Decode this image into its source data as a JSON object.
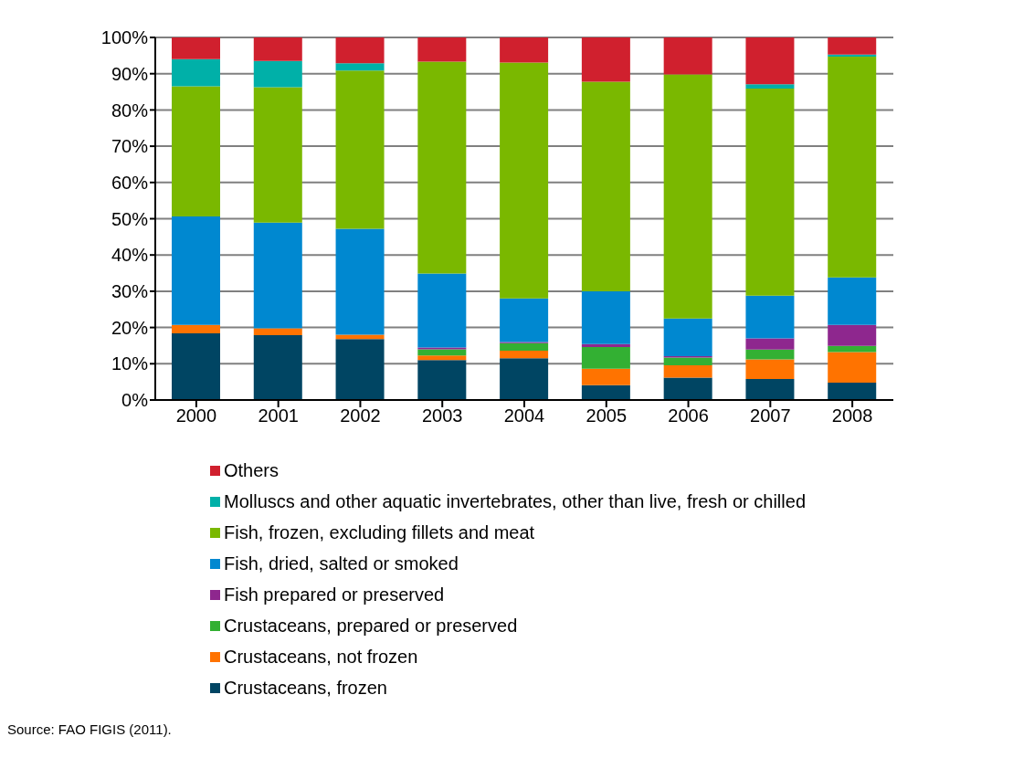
{
  "chart_data": {
    "type": "bar",
    "stacked": true,
    "categories": [
      "2000",
      "2001",
      "2002",
      "2003",
      "2004",
      "2005",
      "2006",
      "2007",
      "2008"
    ],
    "series": [
      {
        "name": "Crustaceans, frozen",
        "color": "#004563",
        "values": [
          18.4,
          17.9,
          16.8,
          11.0,
          11.5,
          4.1,
          6.2,
          5.8,
          4.8
        ]
      },
      {
        "name": "Crustaceans, not frozen",
        "color": "#ff7300",
        "values": [
          2.3,
          1.9,
          1.2,
          1.3,
          2.1,
          4.5,
          3.4,
          5.4,
          8.4
        ]
      },
      {
        "name": "Crustaceans, prepared or preserved",
        "color": "#33b033",
        "values": [
          0,
          0,
          0,
          1.7,
          2.1,
          6.0,
          2.1,
          2.7,
          1.7
        ]
      },
      {
        "name": "Fish prepared or preserved",
        "color": "#8e278e",
        "values": [
          0,
          0,
          0,
          0.5,
          0.3,
          0.8,
          0.4,
          3.1,
          5.8
        ]
      },
      {
        "name": "Fish, dried, salted or smoked",
        "color": "#0088d0",
        "values": [
          29.9,
          29.1,
          29.2,
          20.4,
          12.0,
          14.6,
          10.4,
          11.8,
          13.1
        ]
      },
      {
        "name": "Fish, frozen, excluding fillets and meat",
        "color": "#7ab800",
        "values": [
          35.9,
          37.4,
          43.7,
          58.4,
          65.1,
          57.8,
          67.3,
          57.1,
          60.9
        ]
      },
      {
        "name": "Molluscs and other aquatic invertebrates, other than live, fresh or chilled",
        "color": "#00b0a8",
        "values": [
          7.5,
          7.2,
          2.0,
          0,
          0,
          0,
          0,
          1.2,
          0.6
        ]
      },
      {
        "name": "Others",
        "color": "#d0202e",
        "values": [
          6.0,
          6.5,
          7.1,
          6.7,
          6.9,
          12.2,
          10.2,
          12.9,
          4.7
        ]
      }
    ],
    "ylim": [
      0,
      100
    ],
    "yticks": [
      {
        "value": 0,
        "label": "0%"
      },
      {
        "value": 10,
        "label": "10%"
      },
      {
        "value": 20,
        "label": "20%"
      },
      {
        "value": 30,
        "label": "30%"
      },
      {
        "value": 40,
        "label": "40%"
      },
      {
        "value": 50,
        "label": "50%"
      },
      {
        "value": 60,
        "label": "60%"
      },
      {
        "value": 70,
        "label": "70%"
      },
      {
        "value": 80,
        "label": "80%"
      },
      {
        "value": 90,
        "label": "90%"
      },
      {
        "value": 100,
        "label": "100%"
      }
    ],
    "grid": "y",
    "legend": "bottom",
    "annotations": [
      "Source: FAO FIGIS (2011)."
    ]
  }
}
